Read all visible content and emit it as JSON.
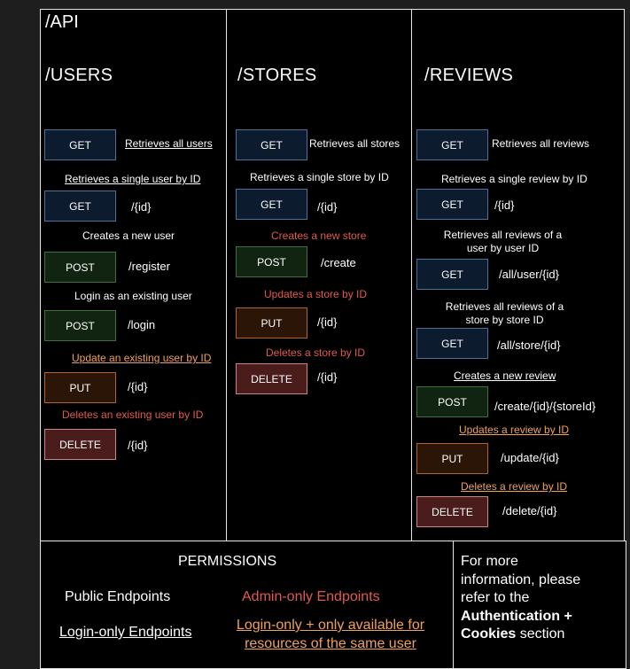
{
  "api": {
    "title": "/API",
    "users": {
      "title": "/USERS",
      "endpoints": [
        {
          "method": "GET",
          "desc": "Retrieves all users",
          "path": ""
        },
        {
          "method": "GET",
          "desc": "Retrieves a single user by ID",
          "path": "/{id}"
        },
        {
          "method": "POST",
          "desc": "Creates a new user",
          "path": "/register"
        },
        {
          "method": "POST",
          "desc": "Login as an existing user",
          "path": "/login"
        },
        {
          "method": "PUT",
          "desc": "Update an existing user by ID",
          "path": "/{id}"
        },
        {
          "method": "DELETE",
          "desc": "Deletes an existing user by ID",
          "path": "/{id}"
        }
      ]
    },
    "stores": {
      "title": "/STORES",
      "endpoints": [
        {
          "method": "GET",
          "desc": "Retrieves all stores",
          "path": ""
        },
        {
          "method": "GET",
          "desc": "Retrieves a single store by ID",
          "path": "/{id}"
        },
        {
          "method": "POST",
          "desc": "Creates a new store",
          "path": "/create"
        },
        {
          "method": "PUT",
          "desc": "Updates a store by ID",
          "path": "/{id}"
        },
        {
          "method": "DELETE",
          "desc": "Deletes a store by ID",
          "path": "/{id}"
        }
      ]
    },
    "reviews": {
      "title": "/REVIEWS",
      "endpoints": [
        {
          "method": "GET",
          "desc": "Retrieves all reviews",
          "path": ""
        },
        {
          "method": "GET",
          "desc": "Retrieves a single review by ID",
          "path": "/{id}"
        },
        {
          "method": "GET",
          "desc_line1": "Retrieves all reviews of a",
          "desc_line2": "user by user ID",
          "path": "/all/user/{id}"
        },
        {
          "method": "GET",
          "desc_line1": "Retrieves all reviews of a",
          "desc_line2": "store by store ID",
          "path": "/all/store/{id}"
        },
        {
          "method": "POST",
          "desc": "Creates a new review",
          "path": "/create/{id}/{storeId}"
        },
        {
          "method": "PUT",
          "desc": "Updates a review by ID",
          "path": "/update/{id}"
        },
        {
          "method": "DELETE",
          "desc": "Deletes a review by ID",
          "path": "/delete/{id}"
        }
      ]
    }
  },
  "permissions": {
    "title": "PERMISSIONS",
    "public": "Public Endpoints",
    "admin": "Admin-only Endpoints",
    "login": "Login-only Endpoints",
    "same_user_line1": "Login-only + only available for",
    "same_user_line2": "resources of the same user"
  },
  "info": {
    "line1": "For more",
    "line2": "information, please",
    "line3": "refer to the",
    "bold1": "Authentication +",
    "bold2": "Cookies",
    "tail": " section"
  },
  "colors": {
    "get": "#0d1b2e",
    "post": "#112411",
    "put": "#2b1506",
    "delete": "#4a1c1c",
    "admin_red": "#e05a4f",
    "same_user_orange": "#f0a15a"
  }
}
